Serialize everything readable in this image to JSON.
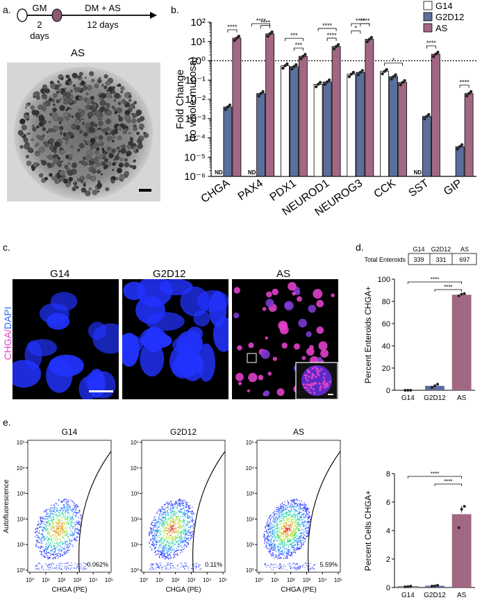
{
  "panel_labels": {
    "a": "a.",
    "b": "b.",
    "c": "c.",
    "d": "d.",
    "e": "e."
  },
  "colors": {
    "g14": "#ffffff",
    "g2d12": "#5b6e9c",
    "as": "#a26783",
    "magenta": "#e040c8",
    "blue": "#2233ff"
  },
  "panel_a": {
    "gm": "GM",
    "gm_days": "2\ndays",
    "gm_days_1": "2",
    "gm_days_2": "days",
    "dm": "DM + AS",
    "dm_days": "12 days",
    "image_title": "AS"
  },
  "panel_c": {
    "titles": [
      "G14",
      "G2D12",
      "AS"
    ],
    "ylabel_chga": "CHGA",
    "ylabel_sep": "/",
    "ylabel_dapi": "DAPI"
  },
  "panel_d_table": {
    "headers": [
      "G14",
      "G2D12",
      "AS"
    ],
    "row_label": "Total Enteroids",
    "values": [
      "339",
      "331",
      "697"
    ]
  },
  "panel_e_flow": {
    "titles": [
      "G14",
      "G2D12",
      "AS"
    ],
    "ylabel": "Autofluorescence",
    "xlabel": "CHGA (PE)",
    "gate_pct": [
      "0.062%",
      "0.11%",
      "5.59%"
    ],
    "x_ticks": [
      "10⁰",
      "10¹",
      "10²",
      "10³",
      "10⁴",
      "10⁵"
    ],
    "y_ticks": [
      "10⁰",
      "10¹",
      "10²",
      "10³",
      "10⁴",
      "10⁵"
    ]
  },
  "chart_data": [
    {
      "type": "bar",
      "id": "b",
      "ylabel": "Fold Change\n(to whole mucosa)",
      "ylabel_1": "Fold Change",
      "ylabel_2": "(to whole mucosa)",
      "yscale": "log",
      "ylim": [
        1e-06,
        100
      ],
      "y_ticks": [
        "10⁻⁶",
        "10⁻⁵",
        "10⁻⁴",
        "10⁻³",
        "10⁻²",
        "10⁻¹",
        "10⁰",
        "10¹",
        "10²"
      ],
      "reference_line": 1,
      "categories": [
        "CHGA",
        "PAX4",
        "PDX1",
        "NEUROD1",
        "NEUROG3",
        "CCK",
        "SST",
        "GIP"
      ],
      "legend": [
        "G14",
        "G2D12",
        "AS"
      ],
      "nd_label": "ND",
      "series": [
        {
          "name": "G14",
          "values": [
            null,
            null,
            0.55,
            0.06,
            0.2,
            0.28,
            null,
            null
          ],
          "nd": [
            true,
            true,
            false,
            false,
            false,
            false,
            true,
            false
          ]
        },
        {
          "name": "G2D12",
          "values": [
            0.004,
            0.02,
            0.5,
            0.08,
            0.25,
            0.15,
            0.0013,
            3.5e-05
          ],
          "nd": [
            false,
            false,
            false,
            false,
            false,
            false,
            false,
            false
          ]
        },
        {
          "name": "AS",
          "values": [
            15,
            25,
            1.7,
            5.5,
            13,
            0.075,
            2.2,
            0.02
          ],
          "nd": [
            false,
            false,
            false,
            false,
            false,
            false,
            false,
            false
          ]
        }
      ],
      "significance": [
        {
          "cat": 0,
          "from": "G2D12",
          "to": "AS",
          "label": "****"
        },
        {
          "cat": 1,
          "from": "G2D12",
          "to": "AS",
          "label": "****"
        },
        {
          "cat": 1,
          "from": "G14",
          "to": "AS",
          "label": "****"
        },
        {
          "cat": 2,
          "from": "G2D12",
          "to": "AS",
          "label": "***"
        },
        {
          "cat": 2,
          "from": "G14",
          "to": "AS",
          "label": "***"
        },
        {
          "cat": 3,
          "from": "G2D12",
          "to": "AS",
          "label": "****"
        },
        {
          "cat": 3,
          "from": "G14",
          "to": "AS",
          "label": "****"
        },
        {
          "cat": 4,
          "from": "G14",
          "to": "G2D12",
          "label": "*"
        },
        {
          "cat": 4,
          "from": "G2D12",
          "to": "AS",
          "label": "****"
        },
        {
          "cat": 4,
          "from": "G14",
          "to": "AS",
          "label": "****"
        },
        {
          "cat": 5,
          "from": "G14",
          "to": "AS",
          "label": "*"
        },
        {
          "cat": 6,
          "from": "G2D12",
          "to": "AS",
          "label": "****"
        },
        {
          "cat": 7,
          "from": "G2D12",
          "to": "AS",
          "label": "****"
        }
      ]
    },
    {
      "type": "bar",
      "id": "d",
      "ylabel": "Percent Enteroids CHGA+",
      "ylim": [
        0,
        100
      ],
      "y_ticks": [
        "0",
        "20",
        "40",
        "60",
        "80",
        "100"
      ],
      "categories": [
        "G14",
        "G2D12",
        "AS"
      ],
      "values": [
        0,
        4,
        86
      ],
      "points": [
        [
          0,
          0,
          0
        ],
        [
          2.5,
          4,
          5.5
        ],
        [
          85,
          86.5,
          87
        ]
      ],
      "significance": [
        {
          "from": 0,
          "to": 2,
          "label": "****"
        },
        {
          "from": 1,
          "to": 2,
          "label": "****"
        }
      ]
    },
    {
      "type": "bar",
      "id": "e",
      "ylabel": "Percent Cells CHGA+",
      "ylim": [
        0,
        8
      ],
      "y_ticks": [
        "0",
        "2",
        "4",
        "6",
        "8"
      ],
      "categories": [
        "G14",
        "G2D12",
        "AS"
      ],
      "values": [
        0.07,
        0.12,
        5.15
      ],
      "points": [
        [
          0.05,
          0.06,
          0.1
        ],
        [
          0.1,
          0.11,
          0.15
        ],
        [
          4.2,
          5.5,
          5.7
        ]
      ],
      "significance": [
        {
          "from": 0,
          "to": 2,
          "label": "****"
        },
        {
          "from": 1,
          "to": 2,
          "label": "****"
        }
      ]
    }
  ]
}
